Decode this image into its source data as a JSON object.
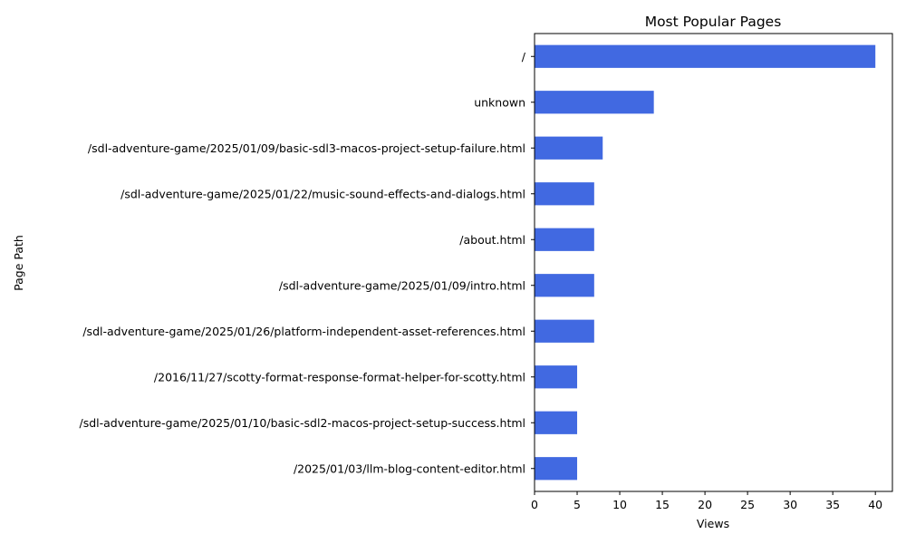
{
  "chart_data": {
    "type": "bar",
    "orientation": "horizontal",
    "title": "Most Popular Pages",
    "xlabel": "Views",
    "ylabel": "Page Path",
    "categories": [
      "/",
      "unknown",
      "/sdl-adventure-game/2025/01/09/basic-sdl3-macos-project-setup-failure.html",
      "/sdl-adventure-game/2025/01/22/music-sound-effects-and-dialogs.html",
      "/about.html",
      "/sdl-adventure-game/2025/01/09/intro.html",
      "/sdl-adventure-game/2025/01/26/platform-independent-asset-references.html",
      "/2016/11/27/scotty-format-response-format-helper-for-scotty.html",
      "/sdl-adventure-game/2025/01/10/basic-sdl2-macos-project-setup-success.html",
      "/2025/01/03/llm-blog-content-editor.html"
    ],
    "values": [
      40,
      14,
      8,
      7,
      7,
      7,
      7,
      5,
      5,
      5
    ],
    "xlim": [
      0,
      42
    ],
    "xticks": [
      0,
      5,
      10,
      15,
      20,
      25,
      30,
      35,
      40
    ],
    "grid": false,
    "legend": "none",
    "bar_color": "#4169e1"
  }
}
